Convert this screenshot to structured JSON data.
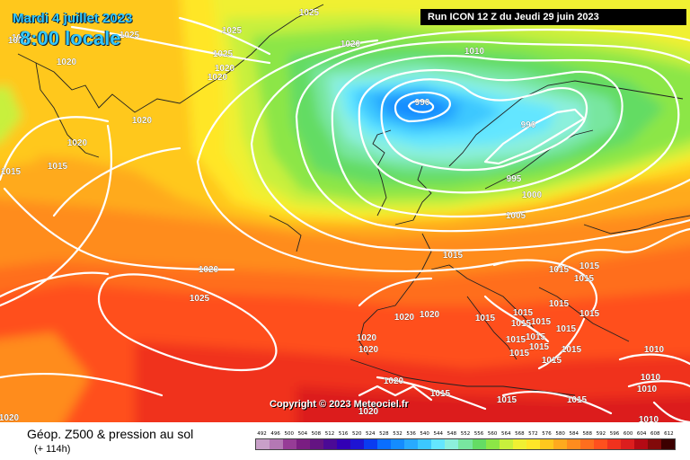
{
  "title": {
    "date": "Mardi 4 juillet 2023",
    "time": "8:00 locale"
  },
  "run_info": "Run ICON 12 Z du Jeudi 29 juin 2023",
  "copyright": "Copyright © 2023 Meteociel.fr",
  "parameter": "Géop. Z500 & pression au sol",
  "lead_time": "(+ 114h)",
  "scale": {
    "values": [
      "492",
      "496",
      "500",
      "504",
      "508",
      "512",
      "516",
      "520",
      "524",
      "528",
      "532",
      "536",
      "540",
      "544",
      "548",
      "552",
      "556",
      "560",
      "564",
      "568",
      "572",
      "576",
      "580",
      "584",
      "588",
      "592",
      "596",
      "600",
      "604",
      "608",
      "612"
    ],
    "colors": [
      "#c8a0c8",
      "#b478b4",
      "#963c96",
      "#7a1e82",
      "#641482",
      "#4b0a96",
      "#3200b4",
      "#1e14d2",
      "#0a3cf0",
      "#0a6eff",
      "#148cff",
      "#28aaff",
      "#3cc8ff",
      "#64e6ff",
      "#8cf0dc",
      "#78e6a0",
      "#64dc64",
      "#8ce646",
      "#c8f03c",
      "#f0f032",
      "#ffe628",
      "#ffc81e",
      "#ffaa1e",
      "#ff8c1e",
      "#ff6e1e",
      "#ff501e",
      "#f0321e",
      "#dc1e1e",
      "#b40a14",
      "#820a0a",
      "#3c0000"
    ]
  },
  "isobar_labels": [
    {
      "v": "1025"
    },
    {
      "v": "1025"
    },
    {
      "v": "1025"
    },
    {
      "v": "1025"
    },
    {
      "v": "1020"
    },
    {
      "v": "1020"
    },
    {
      "v": "1020"
    },
    {
      "v": "1020"
    },
    {
      "v": "1020"
    },
    {
      "v": "1020"
    },
    {
      "v": "1015"
    },
    {
      "v": "1015"
    },
    {
      "v": "1010"
    },
    {
      "v": "990"
    },
    {
      "v": "990"
    },
    {
      "v": "995"
    },
    {
      "v": "1000"
    },
    {
      "v": "1005"
    },
    {
      "v": "1015"
    },
    {
      "v": "1015"
    },
    {
      "v": "1020"
    },
    {
      "v": "1025"
    },
    {
      "v": "1015"
    },
    {
      "v": "1015"
    },
    {
      "v": "1015"
    },
    {
      "v": "1015"
    },
    {
      "v": "1020"
    },
    {
      "v": "1020"
    },
    {
      "v": "1015"
    },
    {
      "v": "1015"
    },
    {
      "v": "1015"
    },
    {
      "v": "1015"
    },
    {
      "v": "1015"
    },
    {
      "v": "1015"
    },
    {
      "v": "1015"
    },
    {
      "v": "1015"
    },
    {
      "v": "1015"
    },
    {
      "v": "1015"
    },
    {
      "v": "1015"
    },
    {
      "v": "1015"
    },
    {
      "v": "1020"
    },
    {
      "v": "1020"
    },
    {
      "v": "1020"
    },
    {
      "v": "1020"
    },
    {
      "v": "1015"
    },
    {
      "v": "1015"
    },
    {
      "v": "1015"
    },
    {
      "v": "1010"
    },
    {
      "v": "1010"
    },
    {
      "v": "1010"
    },
    {
      "v": "1010"
    },
    {
      "v": "1020"
    },
    {
      "v": "1020"
    }
  ]
}
